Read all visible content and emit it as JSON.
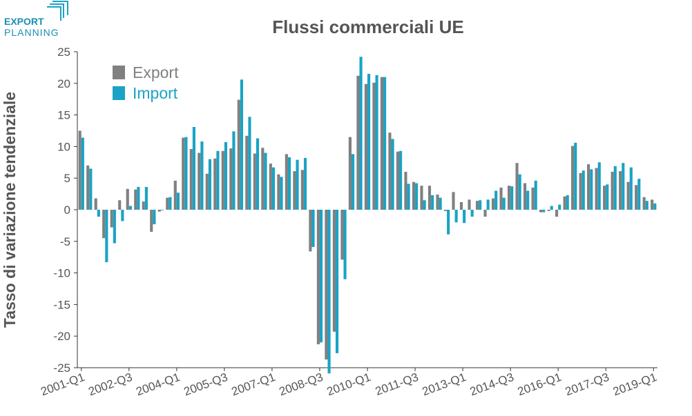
{
  "logo": {
    "line1": "EXPORT",
    "line2": "PLANNING"
  },
  "chart_data": {
    "type": "bar",
    "title": "Flussi commerciali UE",
    "ylabel": "Tasso di variazione tendenziale",
    "categories": [
      "2001-Q1",
      null,
      null,
      null,
      null,
      null,
      "2002-Q3",
      null,
      null,
      null,
      null,
      null,
      "2004-Q1",
      null,
      null,
      null,
      null,
      null,
      "2005-Q3",
      null,
      null,
      null,
      null,
      null,
      "2007-Q1",
      null,
      null,
      null,
      null,
      null,
      "2008-Q3",
      null,
      null,
      null,
      null,
      null,
      "2010-Q1",
      null,
      null,
      null,
      null,
      null,
      "2011-Q3",
      null,
      null,
      null,
      null,
      null,
      "2013-Q1",
      null,
      null,
      null,
      null,
      null,
      "2014-Q3",
      null,
      null,
      null,
      null,
      null,
      "2016-Q1",
      null,
      null,
      null,
      null,
      null,
      "2017-Q3",
      null,
      null,
      null,
      null,
      null,
      "2019-Q1"
    ],
    "series": [
      {
        "name": "Export",
        "color": "#808080",
        "values": [
          12.5,
          7.0,
          1.8,
          -4.5,
          -2.8,
          1.5,
          3.3,
          3.2,
          1.3,
          -3.5,
          -0.3,
          1.9,
          4.6,
          11.4,
          9.6,
          9.0,
          5.7,
          8.1,
          9.3,
          9.7,
          17.4,
          11.7,
          8.9,
          9.8,
          7.3,
          5.6,
          8.8,
          6.1,
          6.3,
          -6.6,
          -21.3,
          -23.7,
          -19.3,
          -7.9,
          11.5,
          21.2,
          19.9,
          20.1,
          21.0,
          12.2,
          9.2,
          6.0,
          4.4,
          3.8,
          3.8,
          2.4,
          -0.2,
          2.8,
          1.2,
          1.6,
          1.4,
          -1.1,
          1.8,
          3.5,
          3.8,
          7.4,
          4.2,
          3.5,
          -0.4,
          -0.2,
          -1.1,
          2.1,
          10.1,
          5.8,
          7.2,
          6.6,
          3.8,
          6.0,
          6.1,
          4.4,
          3.9,
          2.0,
          1.6
        ]
      },
      {
        "name": "Import",
        "color": "#1aa3c4",
        "values": [
          11.4,
          6.5,
          -1.1,
          -8.3,
          -5.3,
          -1.8,
          0.6,
          3.6,
          3.6,
          -2.3,
          -0.1,
          2.0,
          2.7,
          11.5,
          13.1,
          10.8,
          8.0,
          9.3,
          10.7,
          12.4,
          20.6,
          14.7,
          11.3,
          9.0,
          6.7,
          5.2,
          8.3,
          7.9,
          8.2,
          -5.9,
          -21.0,
          -25.9,
          -22.7,
          -11.0,
          8.8,
          24.2,
          21.5,
          21.3,
          21.0,
          11.2,
          9.3,
          4.1,
          4.2,
          1.5,
          2.3,
          1.9,
          -3.9,
          -2.0,
          -2.1,
          -1.1,
          1.5,
          1.6,
          3.0,
          1.9,
          3.7,
          5.6,
          3.0,
          4.6,
          -0.4,
          0.6,
          0.8,
          2.3,
          10.6,
          6.2,
          6.4,
          7.5,
          4.0,
          6.9,
          7.4,
          6.7,
          4.9,
          1.4,
          1.0
        ]
      }
    ],
    "ylim": [
      -25,
      25
    ],
    "yticks": [
      -25,
      -20,
      -15,
      -10,
      -5,
      0,
      5,
      10,
      15,
      20,
      25
    ],
    "grid": false,
    "legend": "top-left"
  }
}
